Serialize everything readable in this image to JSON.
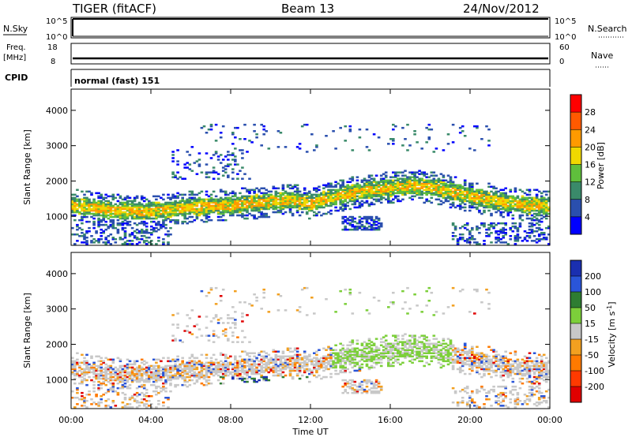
{
  "header": {
    "radar": "TIGER (fitACF)",
    "beam": "Beam 13",
    "date": "24/Nov/2012"
  },
  "top_panels": {
    "nsky": {
      "label": "N.Sky",
      "ticks": [
        "10^5",
        "10^0"
      ]
    },
    "nsearch": {
      "label": "N.Search",
      "ticks": [
        "10^5",
        "10^0"
      ]
    },
    "freq": {
      "label_line1": "Freq.",
      "label_line2": "[MHz]",
      "ticks": [
        "18",
        "8"
      ]
    },
    "nave": {
      "label": "Nave",
      "ticks": [
        "60",
        "0"
      ]
    },
    "cpid": {
      "label": "CPID",
      "value": "normal (fast) 151"
    }
  },
  "chart_data": [
    {
      "type": "heatmap",
      "panel": "power",
      "ylabel": "Slant Range [km]",
      "ylim": [
        180,
        4600
      ],
      "yticks": [
        "1000",
        "2000",
        "3000",
        "4000"
      ],
      "ytick_values": [
        1000,
        2000,
        3000,
        4000
      ],
      "xlim_hours": [
        0,
        24
      ],
      "colorbar": {
        "label": "Power [dB]",
        "ticks": [
          "4",
          "8",
          "12",
          "16",
          "20",
          "24",
          "28"
        ],
        "tick_values": [
          4,
          8,
          12,
          16,
          20,
          24,
          28
        ],
        "range": [
          0,
          32
        ],
        "colors": [
          "#0000ff",
          "#2a4fae",
          "#3a8a6a",
          "#5fbf3c",
          "#f0d800",
          "#ff9a00",
          "#ff5a00",
          "#ff0000"
        ]
      },
      "main_band_km": {
        "hours": [
          0,
          2,
          4,
          6,
          8,
          10,
          11,
          12,
          13,
          14,
          16,
          17,
          18,
          20,
          22,
          24
        ],
        "center": [
          1300,
          1150,
          1120,
          1250,
          1300,
          1400,
          1450,
          1350,
          1500,
          1650,
          1800,
          1850,
          1800,
          1550,
          1350,
          1250
        ]
      }
    },
    {
      "type": "heatmap",
      "panel": "velocity",
      "ylabel": "Slant Range [km]",
      "ylim": [
        180,
        4600
      ],
      "yticks": [
        "1000",
        "2000",
        "3000",
        "4000"
      ],
      "ytick_values": [
        1000,
        2000,
        3000,
        4000
      ],
      "xlim_hours": [
        0,
        24
      ],
      "colorbar": {
        "label_main": "Velocity [m s",
        "label_sup": "-1",
        "label_end": "]",
        "ticks": [
          "200",
          "100",
          "50",
          "15",
          "-15",
          "-50",
          "-100",
          "-200"
        ],
        "colors": [
          "#1a2fb0",
          "#2a55d8",
          "#2e7d32",
          "#7ccf3a",
          "#c8c8c8",
          "#f2a020",
          "#ff7a00",
          "#ff3a00",
          "#e00000"
        ]
      }
    }
  ],
  "xaxis": {
    "ticks": [
      "00:00",
      "04:00",
      "08:00",
      "12:00",
      "16:00",
      "20:00",
      "00:00"
    ],
    "label": "Time UT"
  }
}
